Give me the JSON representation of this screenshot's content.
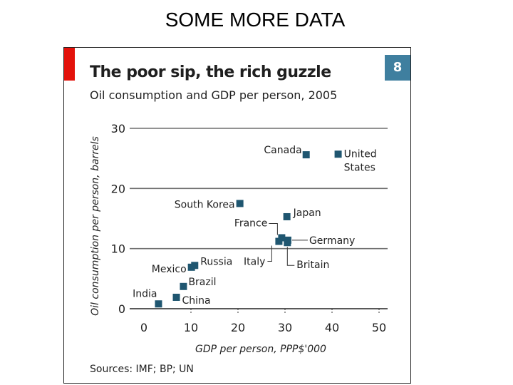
{
  "slide": {
    "title": "SOME MORE DATA"
  },
  "chart_number": "8",
  "sources": "Sources: IMF; BP; UN",
  "colors": {
    "marker": "#1f5670",
    "accent_tab": "#e3120b",
    "number_badge": "#3f7f9f",
    "gridline": "#6f6f6f"
  },
  "chart_data": {
    "type": "scatter",
    "title": "The poor sip, the rich guzzle",
    "subtitle": "Oil consumption and GDP per person, 2005",
    "xlabel": "GDP per person, PPP$'000",
    "ylabel": "Oil consumption per person, barrels",
    "xlim": [
      0,
      50
    ],
    "ylim": [
      0,
      30
    ],
    "xticks": [
      0,
      10,
      20,
      30,
      40,
      50
    ],
    "yticks": [
      0,
      10,
      20,
      30
    ],
    "grid": "horizontal",
    "points": [
      {
        "label": "Canada",
        "x": 34.5,
        "y": 25.6
      },
      {
        "label": "United States",
        "x": 41.3,
        "y": 25.7
      },
      {
        "label": "South Korea",
        "x": 20.4,
        "y": 17.5
      },
      {
        "label": "Japan",
        "x": 30.4,
        "y": 15.3
      },
      {
        "label": "France",
        "x": 29.3,
        "y": 11.8
      },
      {
        "label": "Germany",
        "x": 30.6,
        "y": 11.4
      },
      {
        "label": "Italy",
        "x": 28.7,
        "y": 11.2
      },
      {
        "label": "Britain",
        "x": 30.5,
        "y": 11.0
      },
      {
        "label": "Russia",
        "x": 10.8,
        "y": 7.2
      },
      {
        "label": "Mexico",
        "x": 10.1,
        "y": 6.9
      },
      {
        "label": "Brazil",
        "x": 8.4,
        "y": 3.7
      },
      {
        "label": "China",
        "x": 6.9,
        "y": 1.9
      },
      {
        "label": "India",
        "x": 3.1,
        "y": 0.8
      }
    ]
  }
}
